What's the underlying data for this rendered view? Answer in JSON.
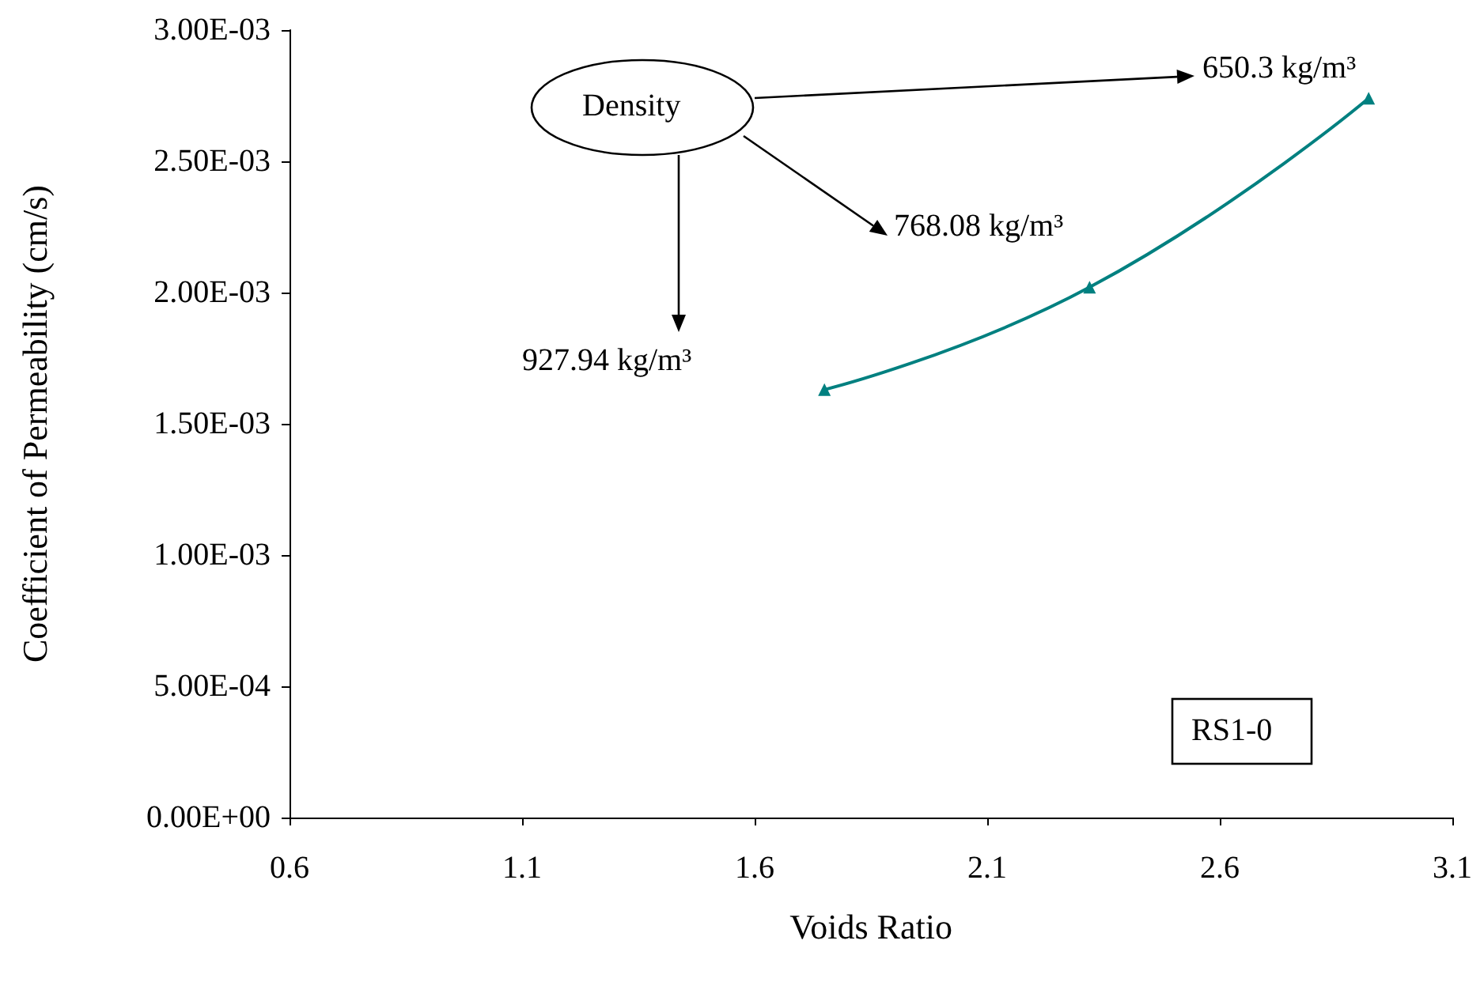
{
  "chart_data": {
    "type": "line",
    "xlabel": "Voids Ratio",
    "ylabel": "Coefficient of Permeability (cm/s)",
    "x": [
      1.75,
      2.32,
      2.92
    ],
    "series": [
      {
        "color": "#008080",
        "values": [
          0.00163,
          0.00202,
          0.00274
        ]
      }
    ],
    "marker": "triangle",
    "line_style": "solid",
    "grid": false,
    "xlim": [
      0.6,
      3.1
    ],
    "xticks": [
      0.6,
      1.1,
      1.6,
      2.1,
      2.6,
      3.1
    ],
    "ylim": [
      0,
      0.003
    ],
    "yticks": [
      {
        "value": 0,
        "label": "0.00E+00"
      },
      {
        "value": 0.0005,
        "label": "5.00E-04"
      },
      {
        "value": 0.001,
        "label": "1.00E-03"
      },
      {
        "value": 0.0015,
        "label": "1.50E-03"
      },
      {
        "value": 0.002,
        "label": "2.00E-03"
      },
      {
        "value": 0.0025,
        "label": "2.50E-03"
      },
      {
        "value": 0.003,
        "label": "3.00E-03"
      }
    ],
    "annotations": [
      "Density",
      "650.3 kg/m³",
      "768.08 kg/m³",
      "927.94 kg/m³",
      "RS1-0"
    ]
  }
}
